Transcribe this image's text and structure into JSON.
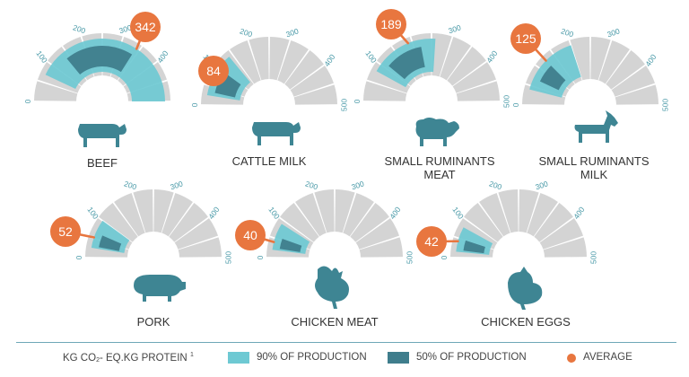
{
  "chart_data": {
    "type": "gauge",
    "scale": {
      "min": 0,
      "max": 500,
      "ticks": [
        0,
        100,
        200,
        300,
        400,
        500
      ]
    },
    "colors": {
      "range_90": "#6ec9d3",
      "range_50": "#3f7d8c",
      "average": "#e8763f",
      "track": "#d4d4d4",
      "label": "#333333",
      "tick": "#4a9aa8"
    },
    "series_names": {
      "range_90": "90% OF PRODUCTION",
      "range_50": "50% OF PRODUCTION",
      "average": "AVERAGE"
    },
    "gauges": [
      {
        "label": [
          "BEEF"
        ],
        "icon": "cow-icon",
        "average": 342,
        "range_90": [
          70,
          500
        ],
        "range_50": [
          140,
          340
        ],
        "tick_labels": [
          "0",
          "100",
          "200",
          "300",
          "400",
          ""
        ]
      },
      {
        "label": [
          "CATTLE MILK"
        ],
        "icon": "cow-icon",
        "average": 84,
        "range_90": [
          25,
          140
        ],
        "range_50": [
          35,
          100
        ],
        "tick_labels": [
          "0",
          "100",
          "200",
          "300",
          "400",
          "500"
        ]
      },
      {
        "label": [
          "SMALL RUMINANTS",
          "MEAT"
        ],
        "icon": "sheep-icon",
        "average": 189,
        "range_90": [
          80,
          260
        ],
        "range_50": [
          110,
          220
        ],
        "tick_labels": [
          "0",
          "100",
          "",
          "300",
          "400",
          "500"
        ]
      },
      {
        "label": [
          "SMALL RUMINANTS",
          "MILK"
        ],
        "icon": "goat-icon",
        "average": 125,
        "range_90": [
          40,
          200
        ],
        "range_50": [
          70,
          125
        ],
        "tick_labels": [
          "0",
          "",
          "200",
          "300",
          "400",
          "500"
        ]
      },
      {
        "label": [
          "PORK"
        ],
        "icon": "pig-icon",
        "average": 52,
        "range_90": [
          25,
          100
        ],
        "range_50": [
          30,
          65
        ],
        "tick_labels": [
          "0",
          "100",
          "200",
          "300",
          "400",
          "500"
        ]
      },
      {
        "label": [
          "CHICKEN MEAT"
        ],
        "icon": "chicken-icon",
        "average": 40,
        "range_90": [
          20,
          90
        ],
        "range_50": [
          25,
          55
        ],
        "tick_labels": [
          "0",
          "100",
          "200",
          "300",
          "400",
          "500"
        ]
      },
      {
        "label": [
          "CHICKEN EGGS"
        ],
        "icon": "hen-icon",
        "average": 42,
        "range_90": [
          15,
          80
        ],
        "range_50": [
          20,
          50
        ],
        "tick_labels": [
          "0",
          "100",
          "200",
          "300",
          "400",
          "500"
        ]
      }
    ]
  },
  "legend": {
    "unit_prefix": "KG CO",
    "unit_sub": "2",
    "unit_mid": "- EQ.KG PROTEIN",
    "unit_sup": "1",
    "range_90": "90% OF PRODUCTION",
    "range_50": "50% OF PRODUCTION",
    "average": "AVERAGE"
  }
}
